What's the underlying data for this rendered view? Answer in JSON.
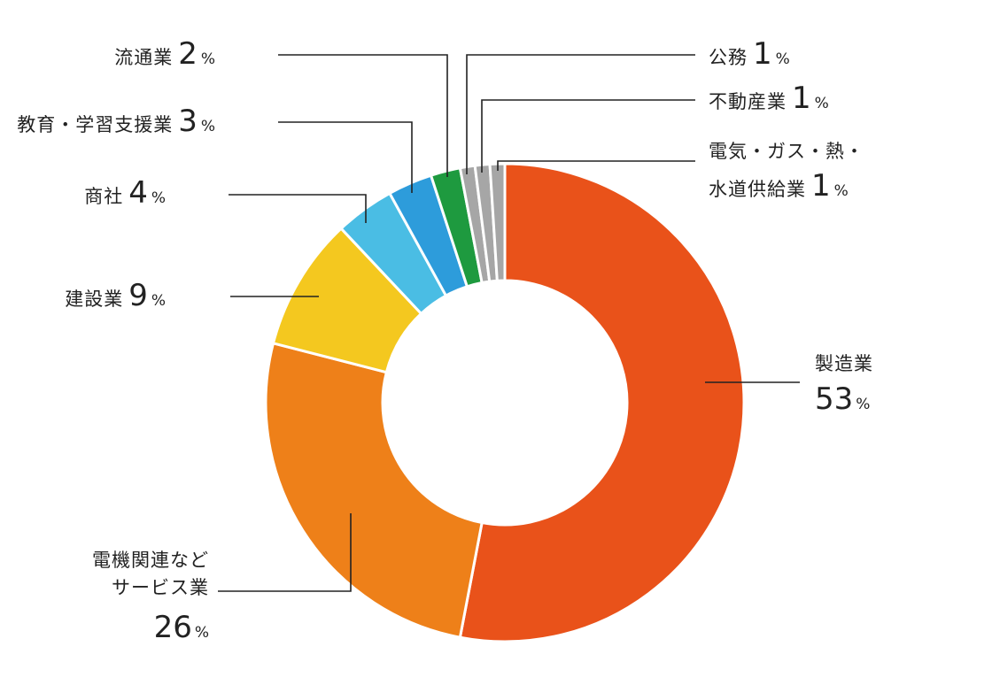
{
  "chart_data": {
    "type": "pie",
    "donut": true,
    "unit": "%",
    "slices": [
      {
        "label": "製造業",
        "value": 53,
        "color": "#E9521A"
      },
      {
        "label": "電機関連などサービス業",
        "label_lines": [
          "電機関連など",
          "サービス業"
        ],
        "value": 26,
        "color": "#EE8019"
      },
      {
        "label": "建設業",
        "value": 9,
        "color": "#F4C81F"
      },
      {
        "label": "商社",
        "value": 4,
        "color": "#4ABDE4"
      },
      {
        "label": "教育・学習支援業",
        "value": 3,
        "color": "#2D9CDB"
      },
      {
        "label": "流通業",
        "value": 2,
        "color": "#1E9A3F"
      },
      {
        "label": "公務",
        "value": 1,
        "color": "#A6A6A6"
      },
      {
        "label": "不動産業",
        "value": 1,
        "color": "#A6A6A6"
      },
      {
        "label": "電気・ガス・熱・水道供給業",
        "label_lines": [
          "電気・ガス・熱・",
          "水道供給業"
        ],
        "value": 1,
        "color": "#A6A6A6"
      }
    ]
  }
}
